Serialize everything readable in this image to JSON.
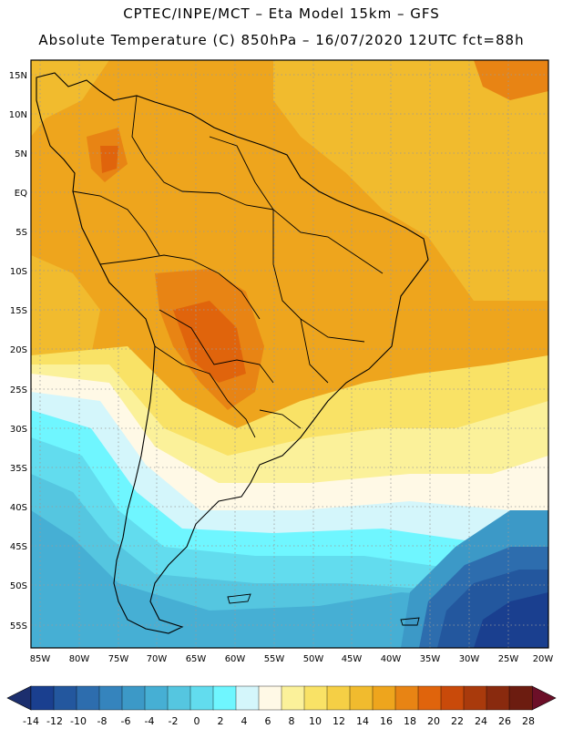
{
  "header": {
    "title_line1": "CPTEC/INPE/MCT –  Eta Model 15km – GFS",
    "title_line2": "Absolute Temperature (C) 850hPa – 16/07/2020 12UTC fct=88h"
  },
  "map": {
    "lat_labels": [
      "15N",
      "10N",
      "5N",
      "EQ",
      "5S",
      "10S",
      "15S",
      "20S",
      "25S",
      "30S",
      "35S",
      "40S",
      "45S",
      "50S",
      "55S"
    ],
    "lon_labels": [
      "85W",
      "80W",
      "75W",
      "70W",
      "65W",
      "60W",
      "55W",
      "50W",
      "45W",
      "40W",
      "35W",
      "30W",
      "25W",
      "20W"
    ]
  },
  "colorbar": {
    "colors": [
      "#1a3f8f",
      "#23579e",
      "#2d6dae",
      "#3584bd",
      "#3c99c7",
      "#46afd4",
      "#55c6e0",
      "#62dcee",
      "#6ff6ff",
      "#d4f6fb",
      "#fff9e6",
      "#fbf19a",
      "#f9e266",
      "#f5cf45",
      "#f1bb2e",
      "#eea51d",
      "#e88414",
      "#e0640c",
      "#c94a0a",
      "#a93a0c",
      "#892a0e",
      "#6c1c10"
    ],
    "ticks": [
      "-14",
      "-12",
      "-10",
      "-8",
      "-6",
      "-4",
      "-2",
      "0",
      "2",
      "4",
      "6",
      "8",
      "10",
      "12",
      "14",
      "16",
      "18",
      "20",
      "22",
      "24",
      "26",
      "28"
    ]
  }
}
